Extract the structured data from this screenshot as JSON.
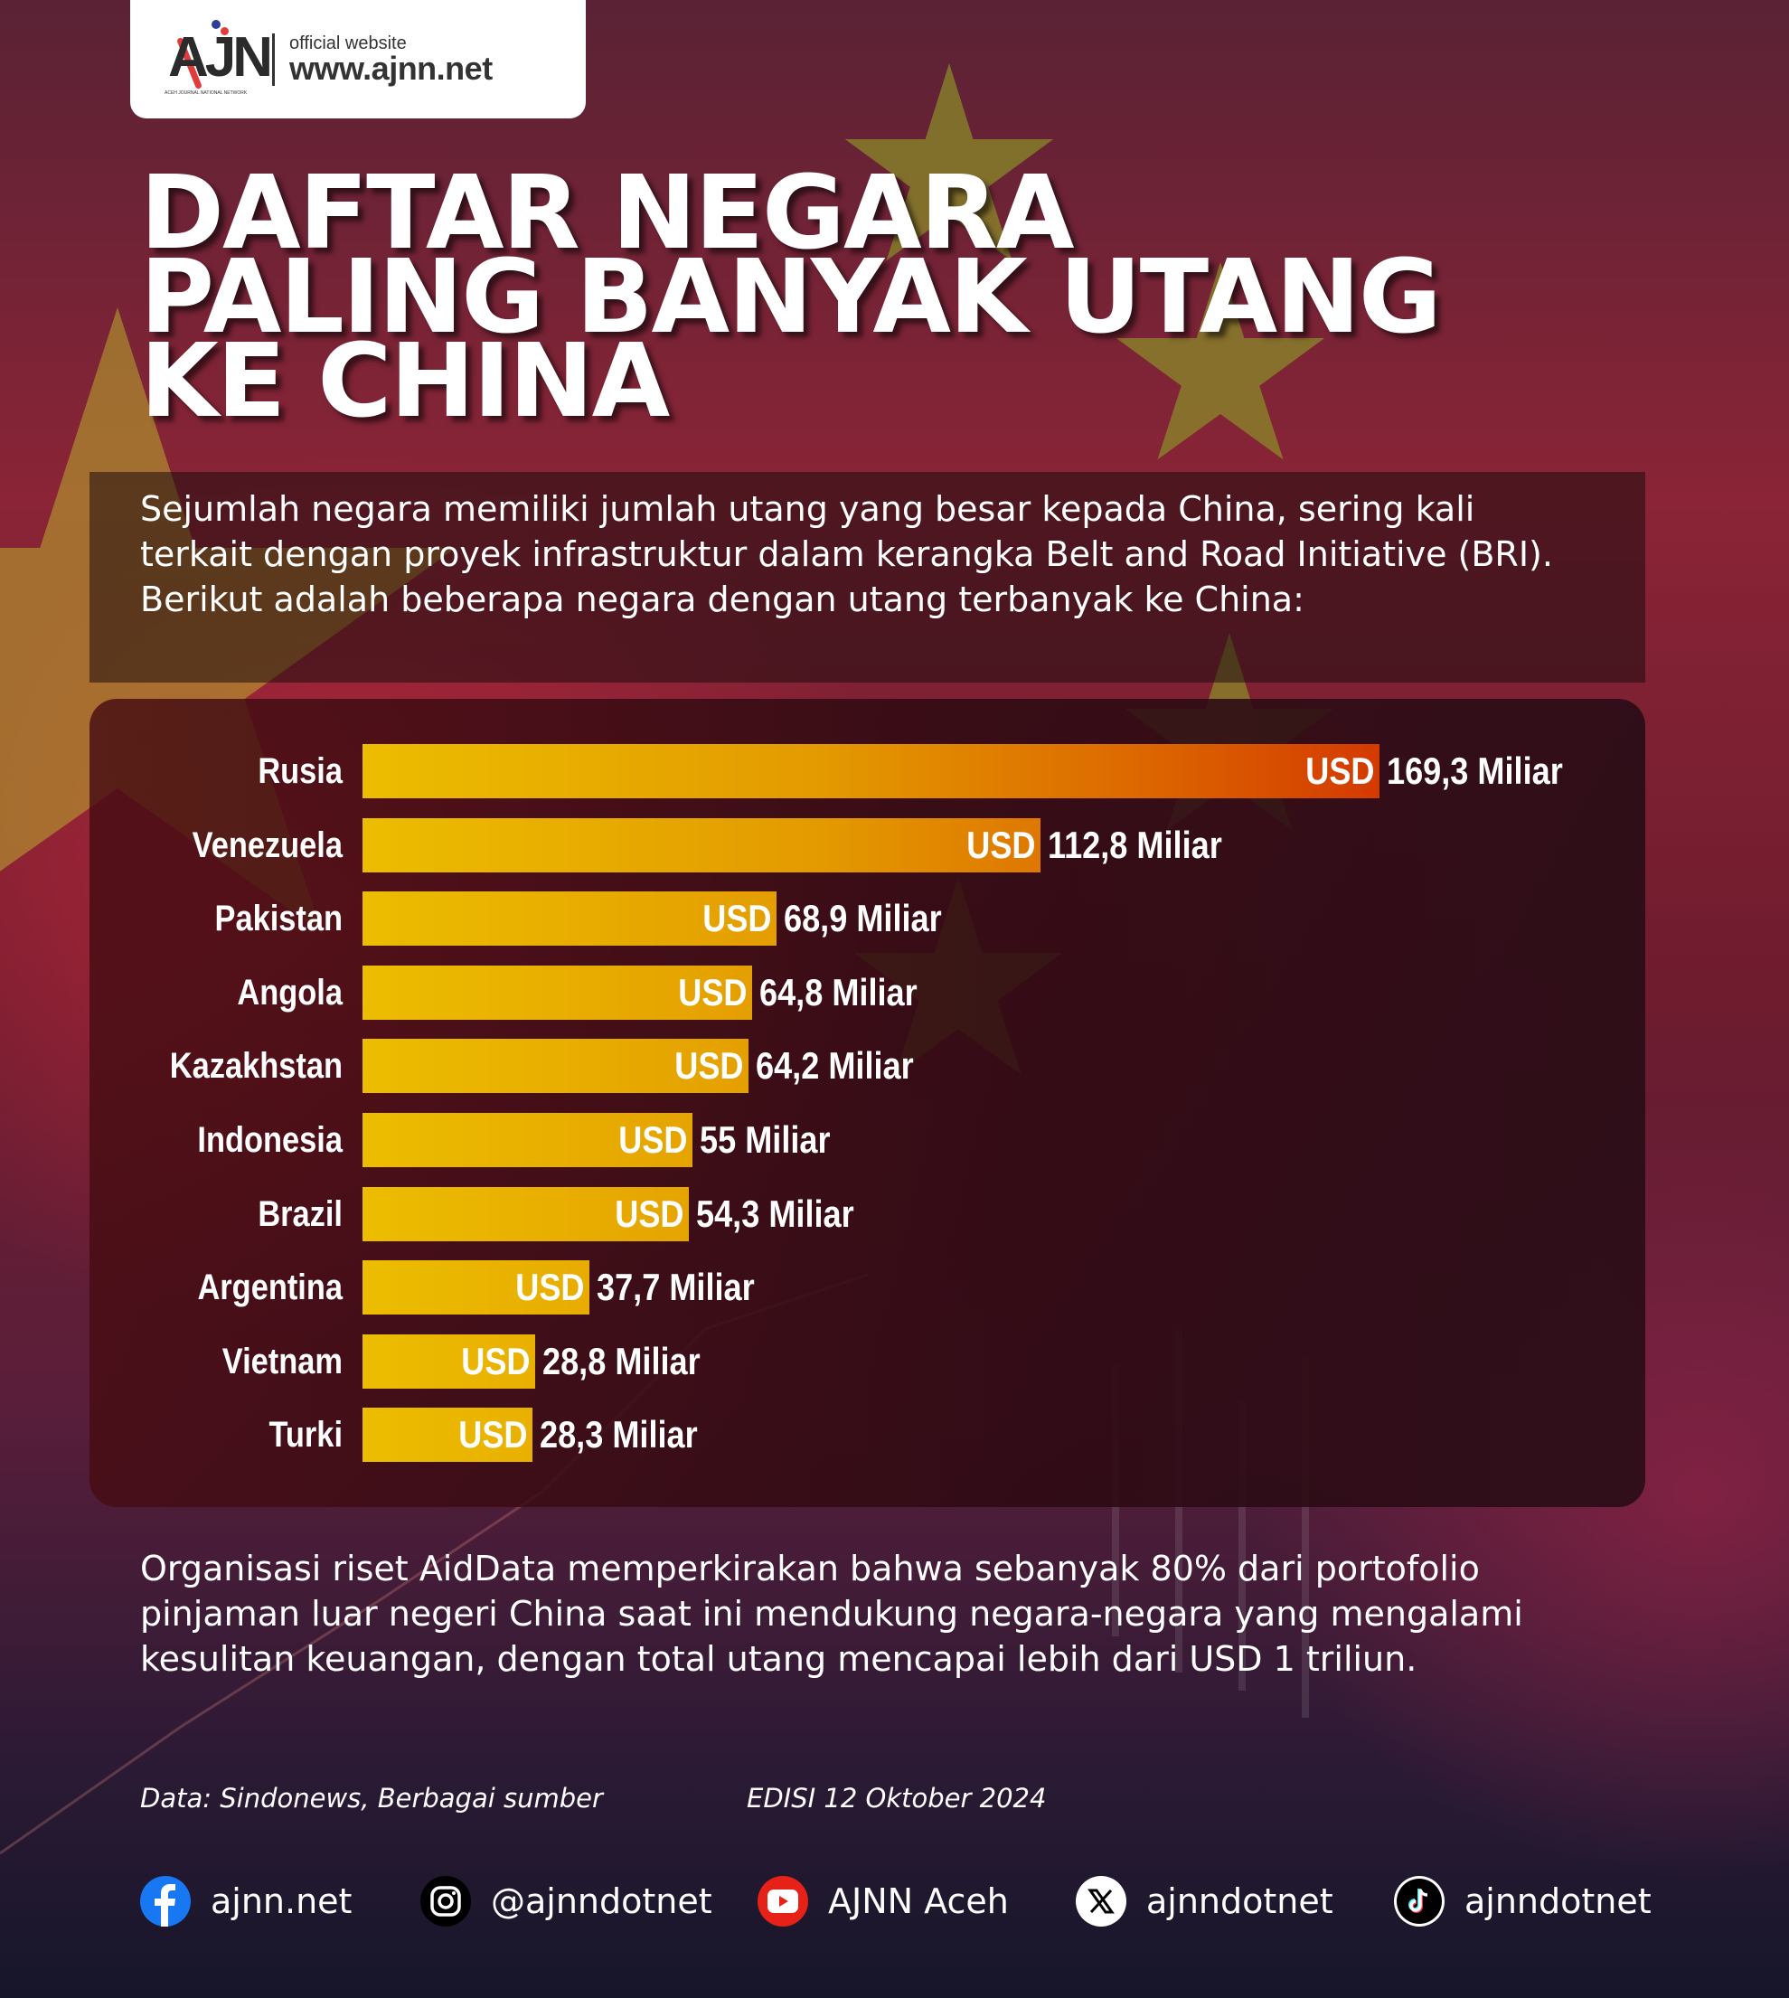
{
  "header": {
    "logo_text": "AJN",
    "logo_subtitle": "ACEH JOURNAL NATIONAL NETWORK",
    "official_label": "official website",
    "website": "www.ajnn.net"
  },
  "title": {
    "line1": "DAFTAR NEGARA",
    "line2": "PALING BANYAK UTANG",
    "line3": "KE CHINA"
  },
  "intro": "Sejumlah negara memiliki jumlah utang yang besar kepada China, sering kali terkait dengan proyek infrastruktur dalam kerangka Belt and Road Initiative (BRI). Berikut adalah beberapa negara dengan utang terbanyak ke China:",
  "chart_data": {
    "type": "bar",
    "orientation": "horizontal",
    "title": "Daftar Negara Paling Banyak Utang ke China",
    "xlabel": "",
    "ylabel": "",
    "unit": "USD Miliar",
    "grid": false,
    "legend": null,
    "categories": [
      "Rusia",
      "Venezuela",
      "Pakistan",
      "Angola",
      "Kazakhstan",
      "Indonesia",
      "Brazil",
      "Argentina",
      "Vietnam",
      "Turki"
    ],
    "values": [
      169.3,
      112.8,
      68.9,
      64.8,
      64.2,
      55,
      54.3,
      37.7,
      28.8,
      28.3
    ],
    "value_labels": [
      "169,3 Miliar",
      "112,8 Miliar",
      "68,9 Miliar",
      "64,8 Miliar",
      "64,2 Miliar",
      "55 Miliar",
      "54,3 Miliar",
      "37,7 Miliar",
      "28,8 Miliar",
      "28,3 Miliar"
    ],
    "currency_label": "USD",
    "colors": {
      "bar_start": "#ecbd00",
      "bar_end": "#d33a00"
    }
  },
  "outro": "Organisasi riset AidData memperkirakan bahwa sebanyak 80% dari portofolio pinjaman luar negeri China saat ini mendukung negara-negara yang mengalami kesulitan keuangan, dengan total utang mencapai lebih dari USD 1 triliun.",
  "footer": {
    "source": "Data: Sindonews, Berbagai sumber",
    "edition": "EDISI 12 Oktober 2024",
    "socials": [
      {
        "icon": "facebook-icon",
        "label": "ajnn.net",
        "color": "#1877f2"
      },
      {
        "icon": "instagram-icon",
        "label": "@ajnndotnet",
        "color": "#000000"
      },
      {
        "icon": "youtube-icon",
        "label": "AJNN Aceh",
        "color": "#e62117"
      },
      {
        "icon": "x-icon",
        "label": "ajnndotnet",
        "color": "#ffffff"
      },
      {
        "icon": "tiktok-icon",
        "label": "ajnndotnet",
        "color": "#000000"
      }
    ]
  }
}
